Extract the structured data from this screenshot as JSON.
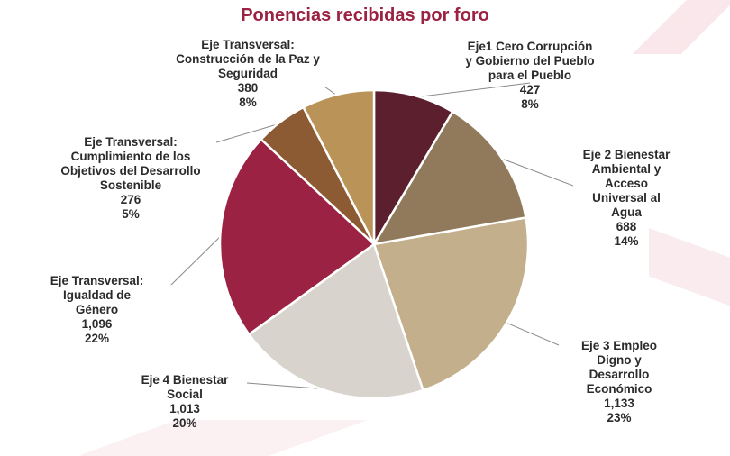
{
  "chart_data": {
    "type": "pie",
    "title": "Ponencias recibidas por foro",
    "slices": [
      {
        "name_lines": [
          "Eje1  Cero Corrupción",
          "y Gobierno del Pueblo",
          "para el Pueblo"
        ],
        "value": 427,
        "value_label": "427",
        "percent_label": "8%",
        "color": "#5c1f2e"
      },
      {
        "name_lines": [
          "Eje 2 Bienestar",
          "Ambiental y",
          "Acceso",
          "Universal al",
          "Agua"
        ],
        "value": 688,
        "value_label": "688",
        "percent_label": "14%",
        "color": "#907a5b"
      },
      {
        "name_lines": [
          "Eje 3 Empleo",
          "Digno y",
          "Desarrollo",
          "Económico"
        ],
        "value": 1133,
        "value_label": "1,133",
        "percent_label": "23%",
        "color": "#c4af8c"
      },
      {
        "name_lines": [
          "Eje 4 Bienestar",
          "Social"
        ],
        "value": 1013,
        "value_label": "1,013",
        "percent_label": "20%",
        "color": "#d8d3cd"
      },
      {
        "name_lines": [
          "Eje Transversal:",
          "Igualdad de",
          "Género"
        ],
        "value": 1096,
        "value_label": "1,096",
        "percent_label": "22%",
        "color": "#9b2242"
      },
      {
        "name_lines": [
          "Eje Transversal:",
          "Cumplimiento de los",
          "Objetivos del Desarrollo",
          "Sostenible"
        ],
        "value": 276,
        "value_label": "276",
        "percent_label": "5%",
        "color": "#8c5a33"
      },
      {
        "name_lines": [
          "Eje Transversal:",
          "Construcción de la Paz y",
          "Seguridad"
        ],
        "value": 380,
        "value_label": "380",
        "percent_label": "8%",
        "color": "#b99358"
      }
    ]
  }
}
